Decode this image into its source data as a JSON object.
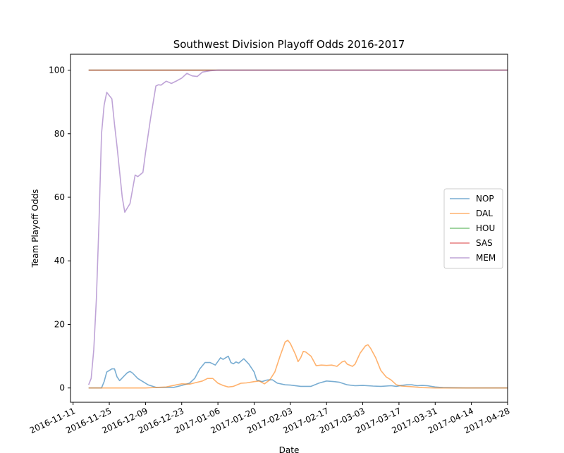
{
  "chart_data": {
    "type": "line",
    "title": "Southwest Division Playoff Odds 2016-2017",
    "xlabel": "Date",
    "ylabel": "Team Playoff Odds",
    "xlim": [
      "2016-11-10",
      "2017-04-28"
    ],
    "ylim": [
      -4.5,
      105
    ],
    "grid": false,
    "legend": "center-right",
    "x_ticks": [
      "2016-11-11",
      "2016-11-25",
      "2016-12-09",
      "2016-12-23",
      "2017-01-06",
      "2017-01-20",
      "2017-02-03",
      "2017-02-17",
      "2017-03-03",
      "2017-03-17",
      "2017-03-31",
      "2017-04-14",
      "2017-04-28"
    ],
    "y_ticks": [
      0,
      20,
      40,
      60,
      80,
      100
    ],
    "series": [
      {
        "name": "NOP",
        "color": "#1f77b4",
        "points": [
          [
            "2016-11-17",
            0
          ],
          [
            "2016-11-22",
            0
          ],
          [
            "2016-11-23",
            2
          ],
          [
            "2016-11-24",
            5
          ],
          [
            "2016-11-26",
            6
          ],
          [
            "2016-11-27",
            6
          ],
          [
            "2016-11-28",
            3.5
          ],
          [
            "2016-11-29",
            2.3
          ],
          [
            "2016-12-01",
            4
          ],
          [
            "2016-12-02",
            4.8
          ],
          [
            "2016-12-03",
            5.2
          ],
          [
            "2016-12-04",
            4.7
          ],
          [
            "2016-12-06",
            3
          ],
          [
            "2016-12-08",
            2
          ],
          [
            "2016-12-10",
            1
          ],
          [
            "2016-12-13",
            0.2
          ],
          [
            "2016-12-20",
            0.2
          ],
          [
            "2016-12-23",
            0.8
          ],
          [
            "2016-12-26",
            1.5
          ],
          [
            "2016-12-28",
            3
          ],
          [
            "2016-12-30",
            6
          ],
          [
            "2017-01-01",
            8
          ],
          [
            "2017-01-03",
            8
          ],
          [
            "2017-01-05",
            7.2
          ],
          [
            "2017-01-07",
            9.5
          ],
          [
            "2017-01-08",
            9
          ],
          [
            "2017-01-10",
            10
          ],
          [
            "2017-01-11",
            8
          ],
          [
            "2017-01-12",
            7.6
          ],
          [
            "2017-01-13",
            8.2
          ],
          [
            "2017-01-14",
            7.8
          ],
          [
            "2017-01-16",
            9.2
          ],
          [
            "2017-01-18",
            7.5
          ],
          [
            "2017-01-20",
            5
          ],
          [
            "2017-01-21",
            2.5
          ],
          [
            "2017-01-23",
            2
          ],
          [
            "2017-01-25",
            2.5
          ],
          [
            "2017-01-27",
            2.6
          ],
          [
            "2017-01-29",
            1.5
          ],
          [
            "2017-02-01",
            1
          ],
          [
            "2017-02-03",
            0.9
          ],
          [
            "2017-02-07",
            0.5
          ],
          [
            "2017-02-11",
            0.5
          ],
          [
            "2017-02-14",
            1.5
          ],
          [
            "2017-02-17",
            2.2
          ],
          [
            "2017-02-20",
            2
          ],
          [
            "2017-02-22",
            1.8
          ],
          [
            "2017-02-25",
            1
          ],
          [
            "2017-02-28",
            0.7
          ],
          [
            "2017-03-03",
            0.8
          ],
          [
            "2017-03-07",
            0.6
          ],
          [
            "2017-03-10",
            0.5
          ],
          [
            "2017-03-14",
            0.7
          ],
          [
            "2017-03-16",
            0.5
          ],
          [
            "2017-03-18",
            0.8
          ],
          [
            "2017-03-20",
            1
          ],
          [
            "2017-03-22",
            1
          ],
          [
            "2017-03-24",
            0.7
          ],
          [
            "2017-03-26",
            0.8
          ],
          [
            "2017-03-28",
            0.7
          ],
          [
            "2017-03-31",
            0.3
          ],
          [
            "2017-04-03",
            0.1
          ],
          [
            "2017-04-12",
            0
          ],
          [
            "2017-04-28",
            0
          ]
        ]
      },
      {
        "name": "DAL",
        "color": "#ff7f0e",
        "points": [
          [
            "2016-11-17",
            0
          ],
          [
            "2016-12-09",
            0
          ],
          [
            "2016-12-17",
            0.3
          ],
          [
            "2016-12-21",
            1
          ],
          [
            "2016-12-23",
            1.3
          ],
          [
            "2016-12-26",
            1.2
          ],
          [
            "2016-12-28",
            1.6
          ],
          [
            "2016-12-31",
            2.2
          ],
          [
            "2017-01-02",
            3
          ],
          [
            "2017-01-04",
            3
          ],
          [
            "2017-01-06",
            1.5
          ],
          [
            "2017-01-08",
            0.8
          ],
          [
            "2017-01-10",
            0.3
          ],
          [
            "2017-01-12",
            0.5
          ],
          [
            "2017-01-15",
            1.5
          ],
          [
            "2017-01-17",
            1.6
          ],
          [
            "2017-01-20",
            2
          ],
          [
            "2017-01-22",
            2.2
          ],
          [
            "2017-01-24",
            1.3
          ],
          [
            "2017-01-26",
            2.5
          ],
          [
            "2017-01-28",
            5
          ],
          [
            "2017-01-30",
            10
          ],
          [
            "2017-02-01",
            14.5
          ],
          [
            "2017-02-02",
            15
          ],
          [
            "2017-02-03",
            14
          ],
          [
            "2017-02-05",
            10.5
          ],
          [
            "2017-02-06",
            8.3
          ],
          [
            "2017-02-07",
            9.5
          ],
          [
            "2017-02-08",
            11.5
          ],
          [
            "2017-02-09",
            11.3
          ],
          [
            "2017-02-11",
            10
          ],
          [
            "2017-02-13",
            7
          ],
          [
            "2017-02-15",
            7.2
          ],
          [
            "2017-02-17",
            7.1
          ],
          [
            "2017-02-19",
            7.2
          ],
          [
            "2017-02-21",
            6.8
          ],
          [
            "2017-02-23",
            8.2
          ],
          [
            "2017-02-24",
            8.5
          ],
          [
            "2017-02-25",
            7.5
          ],
          [
            "2017-02-27",
            6.8
          ],
          [
            "2017-02-28",
            7.5
          ],
          [
            "2017-03-02",
            11
          ],
          [
            "2017-03-04",
            13.2
          ],
          [
            "2017-03-05",
            13.6
          ],
          [
            "2017-03-06",
            12.5
          ],
          [
            "2017-03-08",
            9.5
          ],
          [
            "2017-03-10",
            5.5
          ],
          [
            "2017-03-12",
            3.5
          ],
          [
            "2017-03-14",
            2.5
          ],
          [
            "2017-03-16",
            1
          ],
          [
            "2017-03-18",
            0.6
          ],
          [
            "2017-03-22",
            0.4
          ],
          [
            "2017-03-26",
            0.1
          ],
          [
            "2017-03-31",
            0
          ],
          [
            "2017-04-28",
            0
          ]
        ]
      },
      {
        "name": "HOU",
        "color": "#2ca02c",
        "points": [
          [
            "2016-11-17",
            100
          ],
          [
            "2017-04-28",
            100
          ]
        ]
      },
      {
        "name": "SAS",
        "color": "#d62728",
        "points": [
          [
            "2016-11-17",
            100
          ],
          [
            "2017-04-28",
            100
          ]
        ]
      },
      {
        "name": "MEM",
        "color": "#9467bd",
        "points": [
          [
            "2016-11-17",
            1
          ],
          [
            "2016-11-18",
            3
          ],
          [
            "2016-11-19",
            12
          ],
          [
            "2016-11-20",
            28
          ],
          [
            "2016-11-21",
            52
          ],
          [
            "2016-11-22",
            80
          ],
          [
            "2016-11-23",
            89
          ],
          [
            "2016-11-24",
            93
          ],
          [
            "2016-11-26",
            91
          ],
          [
            "2016-11-27",
            83
          ],
          [
            "2016-11-28",
            76
          ],
          [
            "2016-11-29",
            68
          ],
          [
            "2016-11-30",
            60
          ],
          [
            "2016-12-01",
            55.3
          ],
          [
            "2016-12-03",
            58
          ],
          [
            "2016-12-05",
            67
          ],
          [
            "2016-12-06",
            66.5
          ],
          [
            "2016-12-08",
            67.8
          ],
          [
            "2016-12-09",
            74
          ],
          [
            "2016-12-11",
            85
          ],
          [
            "2016-12-13",
            95
          ],
          [
            "2016-12-14",
            95.4
          ],
          [
            "2016-12-15",
            95.3
          ],
          [
            "2016-12-17",
            96.5
          ],
          [
            "2016-12-18",
            96.2
          ],
          [
            "2016-12-19",
            95.8
          ],
          [
            "2016-12-21",
            96.6
          ],
          [
            "2016-12-23",
            97.5
          ],
          [
            "2016-12-25",
            99
          ],
          [
            "2016-12-27",
            98.2
          ],
          [
            "2016-12-29",
            98
          ],
          [
            "2016-12-31",
            99.4
          ],
          [
            "2017-01-03",
            99.8
          ],
          [
            "2017-01-06",
            100
          ],
          [
            "2017-04-28",
            100
          ]
        ]
      }
    ]
  }
}
